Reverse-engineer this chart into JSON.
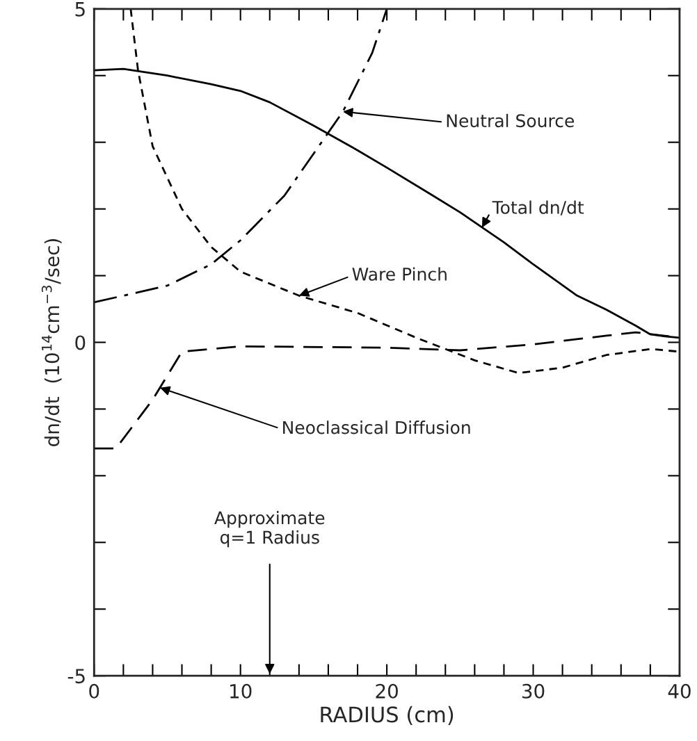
{
  "chart_data": {
    "type": "line",
    "xlabel": "RADIUS (cm)",
    "ylabel": "dn/dt  (10$^{14}$cm$^{−3}$/sec)",
    "xlim": [
      0,
      40
    ],
    "ylim": [
      -5,
      5
    ],
    "xticks": [
      0,
      10,
      20,
      30,
      40
    ],
    "yticks": [
      -5,
      0,
      5
    ],
    "grid": false,
    "legend": false,
    "series": [
      {
        "color": "#000000",
        "line_style": "solid",
        "x": [
          0,
          2,
          5,
          8,
          10,
          12,
          15,
          18,
          20,
          23,
          25,
          28,
          30,
          33,
          35,
          37,
          38,
          39,
          40
        ],
        "values": [
          4.08,
          4.1,
          4.0,
          3.87,
          3.77,
          3.6,
          3.25,
          2.88,
          2.62,
          2.22,
          1.95,
          1.5,
          1.17,
          0.7,
          0.49,
          0.25,
          0.12,
          0.09,
          0.07
        ]
      },
      {
        "color": "#000000",
        "line_style": "dashdot",
        "x": [
          0,
          5,
          8,
          10,
          13,
          15,
          17,
          19,
          20
        ],
        "values": [
          0.6,
          0.85,
          1.17,
          1.53,
          2.2,
          2.83,
          3.46,
          4.34,
          5.0
        ]
      },
      {
        "color": "#000000",
        "line_style": "dotted",
        "x": [
          2.5,
          3,
          4,
          6,
          8,
          10,
          14,
          18,
          22,
          26,
          29,
          32,
          35,
          38,
          40
        ],
        "values": [
          5.0,
          4.08,
          2.94,
          2.0,
          1.43,
          1.06,
          0.7,
          0.44,
          0.07,
          -0.27,
          -0.46,
          -0.38,
          -0.19,
          -0.1,
          -0.14
        ]
      },
      {
        "color": "#000000",
        "line_style": "dashed",
        "x": [
          0,
          1.5,
          4,
          6,
          10,
          20,
          25,
          30,
          35,
          37,
          40
        ],
        "values": [
          -1.59,
          -1.59,
          -0.86,
          -0.14,
          -0.06,
          -0.08,
          -0.12,
          -0.03,
          0.1,
          0.15,
          0.07
        ]
      }
    ],
    "annotations": [
      {
        "text": "Neutral Source",
        "x": 17,
        "y": 3.46
      },
      {
        "text": "Total dn/dt",
        "x": 26.5,
        "y": 1.72
      },
      {
        "text": "Ware Pinch",
        "x": 14,
        "y": 0.7
      },
      {
        "text": "Neoclassical Diffusion",
        "x": 4.5,
        "y": -0.68
      },
      "Approximate\nq=1 Radius"
    ]
  }
}
